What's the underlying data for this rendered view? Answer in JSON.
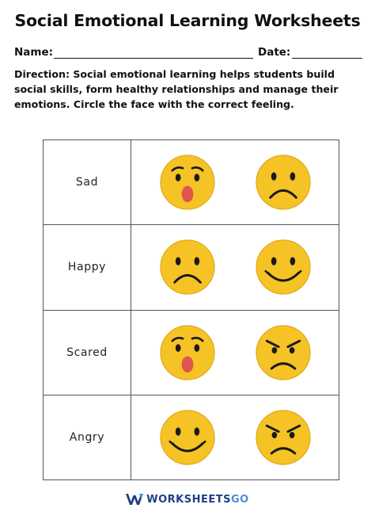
{
  "title": "Social Emotional Learning Worksheets",
  "fields": {
    "name_label": "Name:",
    "date_label": "Date:"
  },
  "direction": "Direction: Social emotional learning helps students build social skills, form healthy relationships and manage their emotions. Circle the face with the correct feeling.",
  "rows": [
    {
      "word": "Sad",
      "faces": [
        "surprised-face-icon",
        "sad-face-icon"
      ]
    },
    {
      "word": "Happy",
      "faces": [
        "sad-face-icon",
        "happy-face-icon"
      ]
    },
    {
      "word": "Scared",
      "faces": [
        "surprised-face-icon",
        "angry-face-icon"
      ]
    },
    {
      "word": "Angry",
      "faces": [
        "happy-face-icon",
        "angry-face-icon"
      ]
    }
  ],
  "colors": {
    "face_fill": "#f5c325",
    "face_outline": "#e0a614",
    "mouth_open": "#e0564f",
    "ink": "#1a1a1a",
    "brand_dark": "#1f3f86",
    "brand_light": "#4d8ed6"
  },
  "brand": {
    "part1": "WORKSHEETS",
    "part2": "GO"
  }
}
